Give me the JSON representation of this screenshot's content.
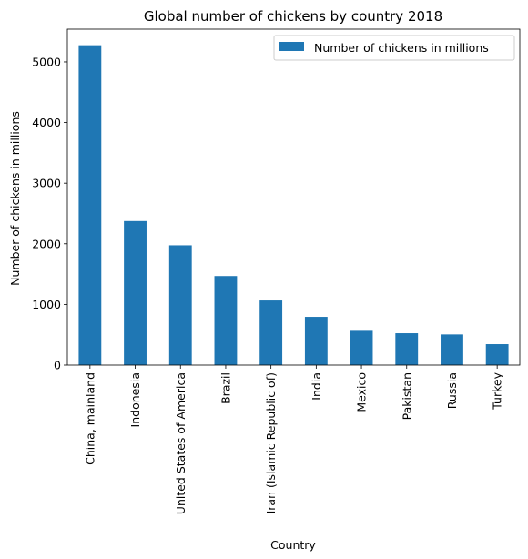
{
  "chart_data": {
    "type": "bar",
    "title": "Global number of chickens by country 2018",
    "xlabel": "Country",
    "ylabel": "Number of chickens in millions",
    "categories": [
      "China, mainland",
      "Indonesia",
      "United States of America",
      "Brazil",
      "Iran (Islamic Republic of)",
      "India",
      "Mexico",
      "Pakistan",
      "Russia",
      "Turkey"
    ],
    "series": [
      {
        "name": "Number of chickens in millions",
        "color": "#1f77b4",
        "values": [
          5275,
          2375,
          1975,
          1468,
          1065,
          795,
          565,
          525,
          505,
          345
        ]
      }
    ],
    "ylim": [
      0,
      5540
    ],
    "yticks": [
      0,
      1000,
      2000,
      3000,
      4000,
      5000
    ],
    "grid": false,
    "legend_position": "top-right"
  }
}
